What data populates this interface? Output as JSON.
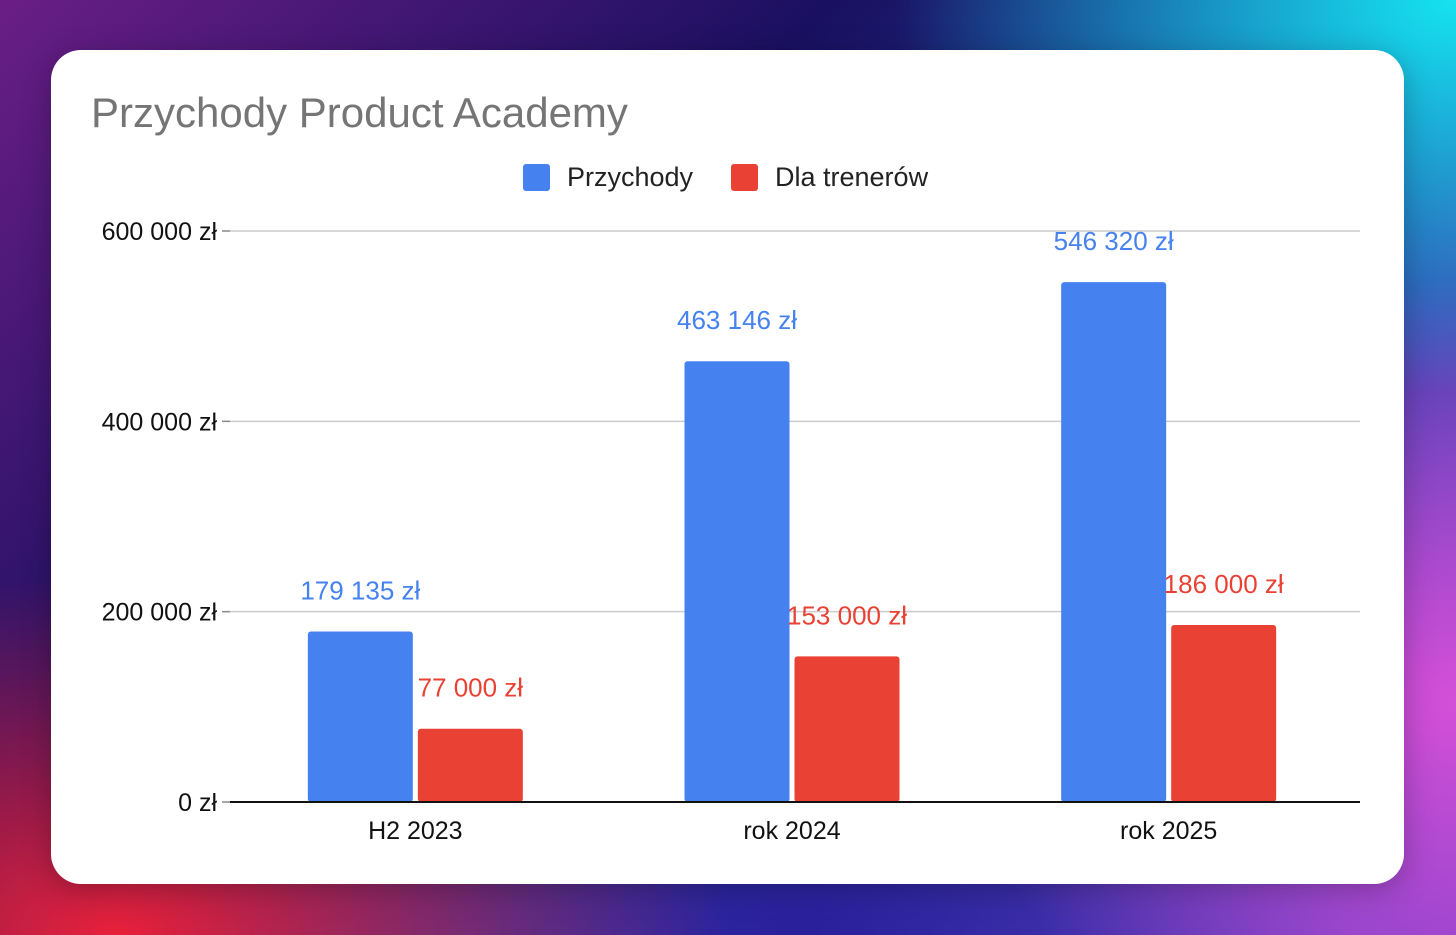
{
  "chart_data": {
    "type": "bar",
    "title": "Przychody Product Academy",
    "categories": [
      "H2 2023",
      "rok 2024",
      "rok 2025"
    ],
    "series": [
      {
        "name": "Przychody",
        "color": "#4582ef",
        "values": [
          179135,
          463146,
          546320
        ],
        "labels": [
          "179 135 zł",
          "463 146 zł",
          "546 320 zł"
        ]
      },
      {
        "name": "Dla trenerów",
        "color": "#e94235",
        "values": [
          77000,
          153000,
          186000
        ],
        "labels": [
          "77 000 zł",
          "153 000 zł",
          "186 000 zł"
        ]
      }
    ],
    "ylim": [
      0,
      600000
    ],
    "yticks": [
      {
        "value": 0,
        "label": "0 zł"
      },
      {
        "value": 200000,
        "label": "200 000 zł"
      },
      {
        "value": 400000,
        "label": "400 000 zł"
      },
      {
        "value": 600000,
        "label": "600 000 zł"
      }
    ],
    "xlabel": "",
    "ylabel": "",
    "legend_position": "top-center",
    "grid": true
  }
}
